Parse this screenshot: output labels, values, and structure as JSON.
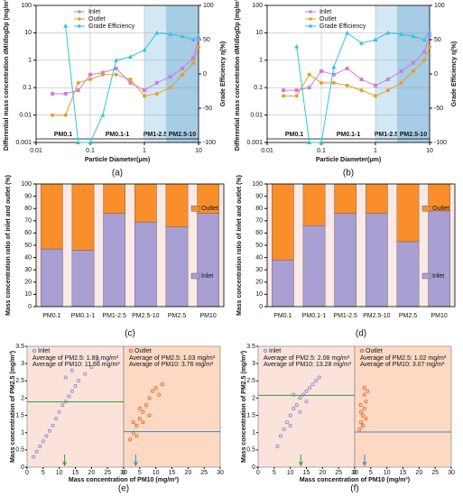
{
  "chart_data": [
    {
      "type": "line",
      "caption": "(a)",
      "xlabel": "Particle Diameter(μm)",
      "ylabel": "Differential mass concentration dM/dlogDp (mg/m³)",
      "y2label": "Grade Efficiency η(%)",
      "xlog": true,
      "ylog": true,
      "xlim": [
        0.01,
        10
      ],
      "xticks": [
        0.01,
        0.1,
        1,
        10
      ],
      "ylim": [
        0.001,
        100
      ],
      "yticks": [
        0.001,
        0.01,
        0.1,
        1,
        10,
        100
      ],
      "y2lim": [
        -100,
        100
      ],
      "y2ticks": [
        -100,
        -50,
        0,
        50,
        100
      ],
      "legend": "upper left",
      "x": [
        0.02,
        0.035,
        0.06,
        0.1,
        0.17,
        0.3,
        0.55,
        1,
        1.7,
        3,
        5,
        8,
        10
      ],
      "series": [
        {
          "name": "Inlet",
          "color": "#c77fe0",
          "marker": "square",
          "values": [
            0.06,
            0.06,
            0.08,
            0.3,
            0.35,
            0.5,
            0.15,
            0.08,
            0.15,
            0.25,
            0.5,
            1.2,
            6
          ]
        },
        {
          "name": "Outlet",
          "color": "#e6a020",
          "marker": "circle",
          "values": [
            0.01,
            0.01,
            0.15,
            0.2,
            0.3,
            0.3,
            0.2,
            0.05,
            0.06,
            0.1,
            0.3,
            0.8,
            3
          ]
        },
        {
          "name": "Grade Efficiency",
          "color": "#28c8dc",
          "marker": "triangle",
          "axis": "y2",
          "values": [
            null,
            70,
            -100,
            -100,
            -60,
            20,
            25,
            35,
            60,
            58,
            55,
            50,
            55
          ]
        }
      ],
      "regions": [
        {
          "label": "PM0.1",
          "from": 0.01,
          "to": 0.1,
          "color": "#ffffff"
        },
        {
          "label": "PM0.1-1",
          "from": 0.1,
          "to": 1,
          "color": "#ffffff"
        },
        {
          "label": "PM1-2.5",
          "from": 1,
          "to": 2.5,
          "color": "#d3e8f5"
        },
        {
          "label": "PM2.5-10",
          "from": 2.5,
          "to": 10,
          "color": "#a7cce6"
        }
      ]
    },
    {
      "type": "line",
      "caption": "(b)",
      "xlabel": "Particle Diameter(μm)",
      "ylabel": "Differential mass concentration dM/dlogDp (mg/m³)",
      "y2label": "Grade Efficiency η(%)",
      "xlog": true,
      "ylog": true,
      "xlim": [
        0.01,
        10
      ],
      "xticks": [
        0.01,
        0.1,
        1,
        10
      ],
      "ylim": [
        0.001,
        100
      ],
      "yticks": [
        0.001,
        0.01,
        0.1,
        1,
        10,
        100
      ],
      "y2lim": [
        -100,
        100
      ],
      "y2ticks": [
        -100,
        -50,
        0,
        50,
        100
      ],
      "legend": "upper left",
      "x": [
        0.02,
        0.035,
        0.06,
        0.1,
        0.17,
        0.3,
        0.55,
        1,
        1.7,
        3,
        5,
        8,
        10
      ],
      "series": [
        {
          "name": "Inlet",
          "color": "#c77fe0",
          "marker": "square",
          "values": [
            0.08,
            0.08,
            0.1,
            0.4,
            0.3,
            0.5,
            0.2,
            0.12,
            0.2,
            0.4,
            0.8,
            2,
            8
          ]
        },
        {
          "name": "Outlet",
          "color": "#e6a020",
          "marker": "circle",
          "values": [
            0.05,
            0.05,
            0.3,
            0.15,
            0.15,
            0.12,
            0.08,
            0.05,
            0.08,
            0.15,
            0.4,
            1,
            3
          ]
        },
        {
          "name": "Grade Efficiency",
          "color": "#28c8dc",
          "marker": "triangle",
          "axis": "y2",
          "values": [
            null,
            40,
            -100,
            -100,
            10,
            60,
            45,
            50,
            60,
            58,
            55,
            50,
            62
          ]
        }
      ],
      "regions": [
        {
          "label": "PM0.1",
          "from": 0.01,
          "to": 0.1,
          "color": "#ffffff"
        },
        {
          "label": "PM0.1-1",
          "from": 0.1,
          "to": 1,
          "color": "#ffffff"
        },
        {
          "label": "PM1-2.5",
          "from": 1,
          "to": 2.5,
          "color": "#d3e8f5"
        },
        {
          "label": "PM2.5-10",
          "from": 2.5,
          "to": 10,
          "color": "#a7cce6"
        }
      ]
    },
    {
      "type": "bar",
      "caption": "(c)",
      "ylabel": "Mass concentration ratio of inlet and outlet (%)",
      "stacked": true,
      "legend": "upper right",
      "categories": [
        "PM0.1",
        "PM0.1-1",
        "PM1-2.5",
        "PM2.5-10",
        "PM2.5",
        "PM10"
      ],
      "ylim": [
        0,
        100
      ],
      "yticks": [
        0,
        10,
        20,
        30,
        40,
        50,
        60,
        70,
        80,
        90,
        100
      ],
      "series": [
        {
          "name": "Inlet",
          "color": "#a99fd2",
          "values": [
            47,
            46,
            76,
            69,
            65,
            76
          ]
        },
        {
          "name": "Outlet",
          "color": "#f98e2b",
          "values": [
            53,
            54,
            24,
            31,
            35,
            24
          ]
        }
      ]
    },
    {
      "type": "bar",
      "caption": "(d)",
      "ylabel": "Mass concentration ratio of inlet and outlet (%)",
      "stacked": true,
      "legend": "upper right",
      "categories": [
        "PM0.1",
        "PM0.1-1",
        "PM1-2.5",
        "PM2.5-10",
        "PM2.5",
        "PM10"
      ],
      "ylim": [
        0,
        100
      ],
      "yticks": [
        0,
        10,
        20,
        30,
        40,
        50,
        60,
        70,
        80,
        90,
        100
      ],
      "series": [
        {
          "name": "Inlet",
          "color": "#a99fd2",
          "values": [
            38,
            66,
            76,
            76,
            53,
            78
          ]
        },
        {
          "name": "Outlet",
          "color": "#f98e2b",
          "values": [
            62,
            34,
            24,
            24,
            47,
            22
          ]
        }
      ]
    },
    {
      "type": "scatter",
      "caption": "(e)",
      "xlabel": "Mass concentration of PM10 (mg/m³)",
      "ylabel": "Mass concentration of PM2.5 (mg/m³)",
      "xlim": [
        0,
        30
      ],
      "xticks": [
        0,
        5,
        10,
        15,
        20,
        25,
        30
      ],
      "ylim": [
        0,
        3.5
      ],
      "yticks": [
        0,
        0.5,
        1,
        1.5,
        2,
        2.5,
        3,
        3.5
      ],
      "series": [
        {
          "name": "Inlet",
          "color": "#8a7fc8",
          "x": [
            2,
            3,
            4,
            5,
            6,
            7,
            8,
            9,
            10,
            11,
            12,
            13,
            14,
            15,
            16,
            18,
            20,
            22,
            12,
            14
          ],
          "values": [
            0.3,
            0.45,
            0.6,
            0.75,
            0.9,
            1.05,
            1.2,
            1.4,
            1.6,
            1.8,
            1.9,
            2.05,
            2.2,
            2.35,
            2.5,
            2.7,
            2.9,
            3.1,
            2.6,
            2.8
          ],
          "avg_y": 1.89,
          "avg_x": 11.66,
          "avg_color": "#2ca02c",
          "avg_labels": [
            "Average of PM2.5: 1.89 mg/m³",
            "Average of PM10: 11.66 mg/m³"
          ]
        },
        {
          "name": "Outlet",
          "color": "#f05a14",
          "x": [
            2,
            3,
            4,
            5,
            6,
            7,
            8,
            9,
            10,
            11,
            6,
            5,
            4,
            3,
            8,
            12
          ],
          "values": [
            0.8,
            1.0,
            1.2,
            1.4,
            1.6,
            1.8,
            2.0,
            2.2,
            2.3,
            2.1,
            1.3,
            1.7,
            0.9,
            1.3,
            1.5,
            2.4
          ],
          "avg_y": 1.03,
          "avg_x": 3.76,
          "avg_color": "#3a86d0",
          "avg_labels": [
            "Average of PM2.5: 1.03 mg/m³",
            "Average of PM10: 3.76 mg/m³"
          ]
        }
      ]
    },
    {
      "type": "scatter",
      "caption": "(f)",
      "xlabel": "Mass concentration of PM10 (mg/m³)",
      "ylabel": "Mass concentration of PM2.5 (mg/m³)",
      "xlim": [
        0,
        30
      ],
      "xticks": [
        0,
        5,
        10,
        15,
        20,
        25,
        30
      ],
      "ylim": [
        0,
        3.5
      ],
      "yticks": [
        0,
        0.5,
        1,
        1.5,
        2,
        2.5,
        3,
        3.5
      ],
      "series": [
        {
          "name": "Inlet",
          "color": "#8a7fc8",
          "x": [
            6,
            7,
            8,
            9,
            10,
            11,
            12,
            13,
            14,
            15,
            16,
            17,
            18,
            13,
            11,
            15,
            19,
            10
          ],
          "values": [
            0.6,
            0.9,
            1.1,
            1.3,
            1.5,
            1.7,
            1.8,
            2.0,
            2.1,
            2.2,
            2.3,
            2.4,
            2.5,
            1.6,
            2.1,
            1.9,
            2.6,
            1.2
          ],
          "avg_y": 2.08,
          "avg_x": 13.28,
          "avg_color": "#2ca02c",
          "avg_labels": [
            "Average of PM2.5: 2.08 mg/m³",
            "Average of PM10: 13.28 mg/m³"
          ]
        },
        {
          "name": "Outlet",
          "color": "#f05a14",
          "x": [
            1.5,
            2,
            2.5,
            3,
            3.5,
            2,
            3,
            4,
            2.5,
            3.5,
            1.8,
            3
          ],
          "values": [
            1.1,
            1.3,
            1.5,
            1.7,
            1.9,
            1.6,
            2.1,
            2.2,
            1.2,
            1.4,
            1.8,
            2.3
          ],
          "avg_y": 1.02,
          "avg_x": 3.07,
          "avg_color": "#3a86d0",
          "avg_labels": [
            "Average of PM2.5: 1.02 mg/m³",
            "Average of PM10: 3.07 mg/m³"
          ]
        }
      ]
    }
  ]
}
